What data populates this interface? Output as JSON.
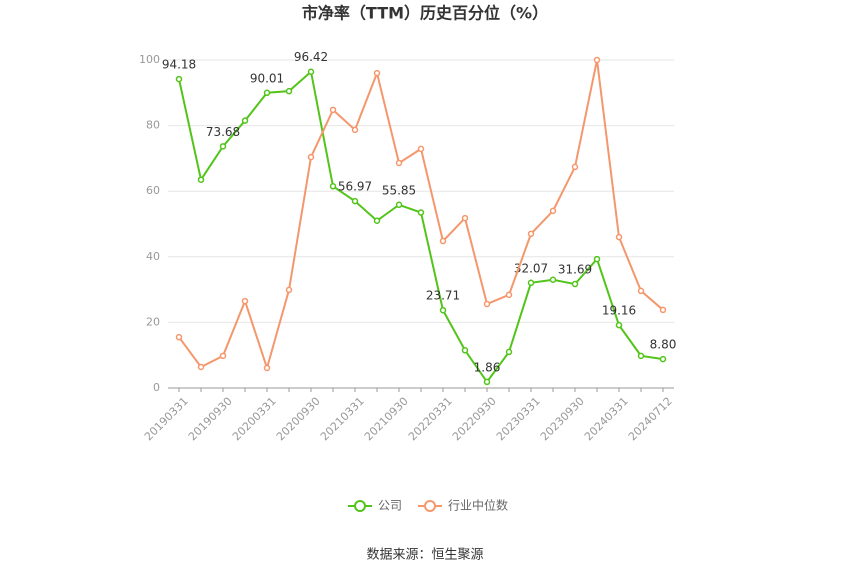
{
  "chart_data": {
    "type": "line",
    "title": "市净率（TTM）历史百分位（%）",
    "source": "数据来源：恒生聚源",
    "categories": [
      "20190331",
      null,
      "20190930",
      null,
      "20200331",
      null,
      "20200930",
      null,
      "20210331",
      null,
      "20210930",
      null,
      "20220331",
      null,
      "20220930",
      null,
      "20230331",
      null,
      "20230930",
      null,
      "20240331",
      null,
      "20240712"
    ],
    "series": [
      {
        "name": "公司",
        "color": "#52c41a",
        "values": [
          94.18,
          63.5,
          73.68,
          81.5,
          90.01,
          90.5,
          96.42,
          61.5,
          56.97,
          51,
          55.85,
          53.5,
          23.71,
          11.5,
          1.86,
          11,
          32.07,
          33,
          31.69,
          39.3,
          19.16,
          9.8,
          8.8
        ],
        "value_labels": [
          "94.18",
          null,
          "73.68",
          null,
          "90.01",
          null,
          "96.42",
          null,
          "56.97",
          null,
          "55.85",
          null,
          "23.71",
          null,
          "1.86",
          null,
          "32.07",
          null,
          "31.69",
          null,
          "19.16",
          null,
          "8.80"
        ]
      },
      {
        "name": "行业中位数",
        "color": "#f4976c",
        "values": [
          15.5,
          6.4,
          9.8,
          26.5,
          6.1,
          29.9,
          70.4,
          84.8,
          78.7,
          96,
          68.6,
          72.9,
          44.8,
          51.8,
          25.6,
          28.4,
          47,
          54,
          67.4,
          100,
          46,
          29.6,
          23.8
        ]
      }
    ],
    "ylim": [
      0,
      100
    ],
    "yticks": [
      0,
      20,
      40,
      60,
      80,
      100
    ],
    "grid": true
  }
}
